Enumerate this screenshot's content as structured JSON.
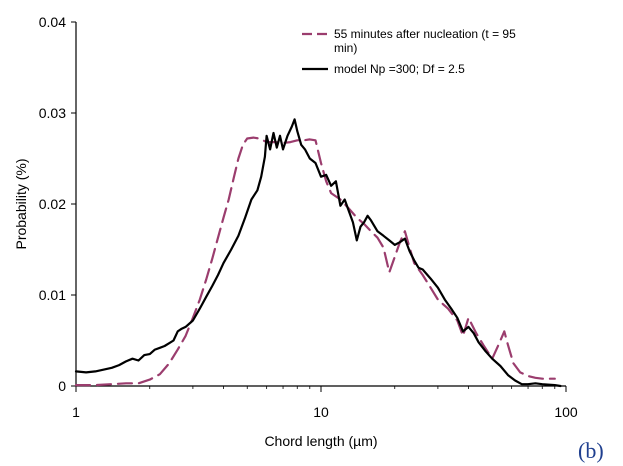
{
  "chart_data": {
    "type": "line",
    "xlabel": "Chord length (µm)",
    "ylabel": "Probability (%)",
    "xscale": "log",
    "xlim": [
      1,
      100
    ],
    "ylim": [
      0,
      0.04
    ],
    "xticks": [
      1,
      10,
      100
    ],
    "xtick_labels": [
      "1",
      "10",
      "100"
    ],
    "yticks": [
      0,
      0.01,
      0.02,
      0.03,
      0.04
    ],
    "ytick_labels": [
      "0",
      "0.01",
      "0.02",
      "0.03",
      "0.04"
    ],
    "grid": false,
    "legend_position": "top-right",
    "series": [
      {
        "name": "55 minutes after nucleation (t = 95 min)",
        "legend_lines": [
          "55 minutes after nucleation (t = 95",
          "min)"
        ],
        "color": "#9b3d6e",
        "style": "dashed",
        "points": [
          [
            1.0,
            0.0001
          ],
          [
            1.2,
            0.0001
          ],
          [
            1.4,
            0.0002
          ],
          [
            1.6,
            0.0003
          ],
          [
            1.8,
            0.0003
          ],
          [
            2.0,
            0.0007
          ],
          [
            2.2,
            0.0013
          ],
          [
            2.4,
            0.0025
          ],
          [
            2.6,
            0.004
          ],
          [
            2.8,
            0.0055
          ],
          [
            3.0,
            0.0075
          ],
          [
            3.2,
            0.0095
          ],
          [
            3.4,
            0.0117
          ],
          [
            3.6,
            0.014
          ],
          [
            3.8,
            0.0163
          ],
          [
            4.0,
            0.0185
          ],
          [
            4.2,
            0.0205
          ],
          [
            4.4,
            0.0228
          ],
          [
            4.6,
            0.025
          ],
          [
            4.8,
            0.0265
          ],
          [
            5.0,
            0.0272
          ],
          [
            5.3,
            0.0273
          ],
          [
            5.6,
            0.0272
          ],
          [
            6.0,
            0.0268
          ],
          [
            6.5,
            0.0268
          ],
          [
            7.0,
            0.0267
          ],
          [
            7.5,
            0.0268
          ],
          [
            8.0,
            0.027
          ],
          [
            8.5,
            0.027
          ],
          [
            9.0,
            0.0271
          ],
          [
            9.5,
            0.027
          ],
          [
            10.0,
            0.0245
          ],
          [
            10.5,
            0.0225
          ],
          [
            11.0,
            0.0212
          ],
          [
            12.0,
            0.0205
          ],
          [
            13.0,
            0.0195
          ],
          [
            14.0,
            0.0185
          ],
          [
            15.0,
            0.0178
          ],
          [
            16.0,
            0.017
          ],
          [
            17.0,
            0.0163
          ],
          [
            18.0,
            0.0152
          ],
          [
            19.0,
            0.0125
          ],
          [
            20.0,
            0.0142
          ],
          [
            21.0,
            0.0158
          ],
          [
            22.0,
            0.017
          ],
          [
            23.0,
            0.0152
          ],
          [
            24.0,
            0.0135
          ],
          [
            26.0,
            0.0122
          ],
          [
            28.0,
            0.0108
          ],
          [
            30.0,
            0.0095
          ],
          [
            33.0,
            0.0085
          ],
          [
            36.0,
            0.0072
          ],
          [
            38.0,
            0.0055
          ],
          [
            40.0,
            0.0075
          ],
          [
            43.0,
            0.0058
          ],
          [
            46.0,
            0.0045
          ],
          [
            50.0,
            0.003
          ],
          [
            53.0,
            0.0045
          ],
          [
            56.0,
            0.006
          ],
          [
            58.0,
            0.0045
          ],
          [
            61.0,
            0.0025
          ],
          [
            65.0,
            0.0015
          ],
          [
            70.0,
            0.0011
          ],
          [
            75.0,
            0.0009
          ],
          [
            80.0,
            0.0008
          ],
          [
            85.0,
            0.0008
          ],
          [
            90.0,
            0.0008
          ]
        ]
      },
      {
        "name": "model Np =300; Df = 2.5",
        "legend_lines": [
          "model Np =300; Df = 2.5"
        ],
        "color": "#000000",
        "style": "solid",
        "points": [
          [
            1.0,
            0.0016
          ],
          [
            1.1,
            0.0015
          ],
          [
            1.2,
            0.0016
          ],
          [
            1.3,
            0.0018
          ],
          [
            1.4,
            0.002
          ],
          [
            1.5,
            0.0023
          ],
          [
            1.6,
            0.0027
          ],
          [
            1.7,
            0.003
          ],
          [
            1.8,
            0.0028
          ],
          [
            1.9,
            0.0034
          ],
          [
            2.0,
            0.0035
          ],
          [
            2.1,
            0.004
          ],
          [
            2.2,
            0.0042
          ],
          [
            2.3,
            0.0044
          ],
          [
            2.4,
            0.0047
          ],
          [
            2.5,
            0.005
          ],
          [
            2.6,
            0.006
          ],
          [
            2.7,
            0.0063
          ],
          [
            2.8,
            0.0065
          ],
          [
            3.0,
            0.0072
          ],
          [
            3.2,
            0.0085
          ],
          [
            3.4,
            0.0098
          ],
          [
            3.6,
            0.011
          ],
          [
            3.8,
            0.0122
          ],
          [
            4.0,
            0.0135
          ],
          [
            4.3,
            0.015
          ],
          [
            4.6,
            0.0165
          ],
          [
            4.9,
            0.0185
          ],
          [
            5.2,
            0.0205
          ],
          [
            5.5,
            0.0215
          ],
          [
            5.7,
            0.023
          ],
          [
            5.9,
            0.0252
          ],
          [
            6.0,
            0.0275
          ],
          [
            6.2,
            0.026
          ],
          [
            6.4,
            0.0278
          ],
          [
            6.6,
            0.0262
          ],
          [
            6.8,
            0.0275
          ],
          [
            7.0,
            0.026
          ],
          [
            7.3,
            0.0275
          ],
          [
            7.6,
            0.0285
          ],
          [
            7.8,
            0.0293
          ],
          [
            8.0,
            0.028
          ],
          [
            8.3,
            0.0265
          ],
          [
            8.6,
            0.026
          ],
          [
            9.0,
            0.025
          ],
          [
            9.5,
            0.0245
          ],
          [
            10.0,
            0.023
          ],
          [
            10.5,
            0.0232
          ],
          [
            11.0,
            0.022
          ],
          [
            11.5,
            0.0225
          ],
          [
            12.0,
            0.0198
          ],
          [
            12.5,
            0.0205
          ],
          [
            13.0,
            0.0192
          ],
          [
            13.5,
            0.018
          ],
          [
            14.0,
            0.016
          ],
          [
            14.5,
            0.0175
          ],
          [
            15.0,
            0.018
          ],
          [
            15.5,
            0.0187
          ],
          [
            16.0,
            0.0182
          ],
          [
            17.0,
            0.017
          ],
          [
            18.0,
            0.0165
          ],
          [
            19.0,
            0.016
          ],
          [
            20.0,
            0.0155
          ],
          [
            21.0,
            0.0158
          ],
          [
            22.0,
            0.0162
          ],
          [
            23.0,
            0.0148
          ],
          [
            24.0,
            0.0138
          ],
          [
            25.0,
            0.013
          ],
          [
            26.0,
            0.0128
          ],
          [
            28.0,
            0.0118
          ],
          [
            30.0,
            0.0108
          ],
          [
            32.0,
            0.0095
          ],
          [
            34.0,
            0.0085
          ],
          [
            36.0,
            0.0075
          ],
          [
            38.0,
            0.006
          ],
          [
            40.0,
            0.0065
          ],
          [
            42.0,
            0.0058
          ],
          [
            44.0,
            0.0048
          ],
          [
            47.0,
            0.0038
          ],
          [
            50.0,
            0.003
          ],
          [
            54.0,
            0.0022
          ],
          [
            58.0,
            0.0012
          ],
          [
            62.0,
            0.0006
          ],
          [
            66.0,
            0.0002
          ],
          [
            70.0,
            0.0002
          ],
          [
            75.0,
            0.0003
          ],
          [
            80.0,
            0.0002
          ],
          [
            90.0,
            0.0001
          ],
          [
            95.0,
            0.0
          ]
        ]
      }
    ]
  },
  "panel_label": "(b)"
}
